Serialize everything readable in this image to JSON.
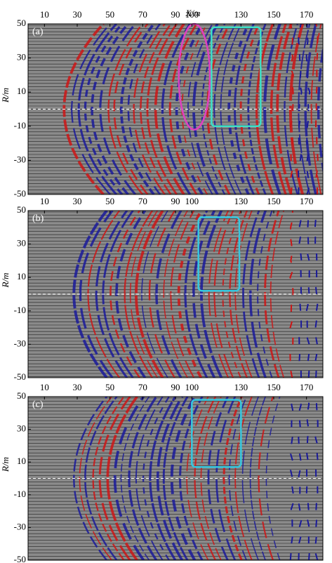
{
  "chart_data": [
    {
      "type": "seismic",
      "label": "(a)",
      "xlabel": "X/m",
      "ylabel": "R/m",
      "xlim": [
        0,
        180
      ],
      "ylim": [
        -50,
        50
      ],
      "xticks": [
        10,
        30,
        50,
        70,
        90,
        100,
        130,
        150,
        170
      ],
      "yticks": [
        50,
        30,
        10,
        -10,
        -30,
        -50
      ],
      "hline": 0,
      "regions": [
        {
          "shape": "ellipse",
          "color": "#e040c0",
          "xlim": [
            92,
            111
          ],
          "ylim": [
            -12,
            50
          ]
        },
        {
          "shape": "rect",
          "color": "#3de0c8",
          "xlim": [
            112,
            142
          ],
          "ylim": [
            -10,
            48
          ]
        }
      ]
    },
    {
      "type": "seismic",
      "label": "(b)",
      "ylabel": "R/m",
      "xlim": [
        0,
        180
      ],
      "ylim": [
        -50,
        50
      ],
      "xticks": [
        10,
        30,
        50,
        70,
        90,
        100,
        130,
        150,
        170
      ],
      "yticks": [
        50,
        30,
        10,
        -10,
        -30,
        -50
      ],
      "hline": 0,
      "regions": [
        {
          "shape": "rect",
          "color": "#35c8e0",
          "xlim": [
            104,
            129
          ],
          "ylim": [
            2,
            46
          ]
        }
      ]
    },
    {
      "type": "seismic",
      "label": "(c)",
      "ylabel": "R/m",
      "xlim": [
        0,
        180
      ],
      "ylim": [
        -50,
        50
      ],
      "xticks": [
        10,
        30,
        50,
        70,
        90,
        100,
        130,
        150,
        170
      ],
      "yticks": [
        50,
        30,
        10,
        -10,
        -30,
        -50
      ],
      "hline": 0,
      "regions": [
        {
          "shape": "rect",
          "color": "#35c8e0",
          "xlim": [
            100,
            130
          ],
          "ylim": [
            7,
            48
          ]
        }
      ]
    }
  ]
}
